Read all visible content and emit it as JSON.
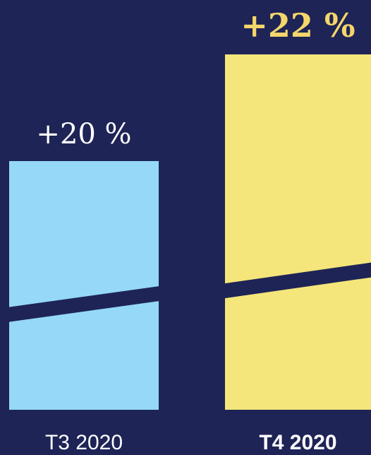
{
  "chart_data": {
    "type": "bar",
    "categories": [
      "T3 2020",
      "T4 2020"
    ],
    "values": [
      20,
      22
    ],
    "data_labels": [
      "+20 %",
      "+22 %"
    ],
    "unit": "%",
    "axis_break": true,
    "highlight": "T4 2020",
    "title": "",
    "xlabel": "",
    "ylabel": ""
  },
  "colors": {
    "background": "#1e2456",
    "bar_default": "#95d8f8",
    "bar_highlight": "#f4e67a",
    "label_default": "#ffffff",
    "label_highlight": "#f4d66a",
    "category_default": "#ffffff",
    "category_highlight": "#ffffff"
  }
}
